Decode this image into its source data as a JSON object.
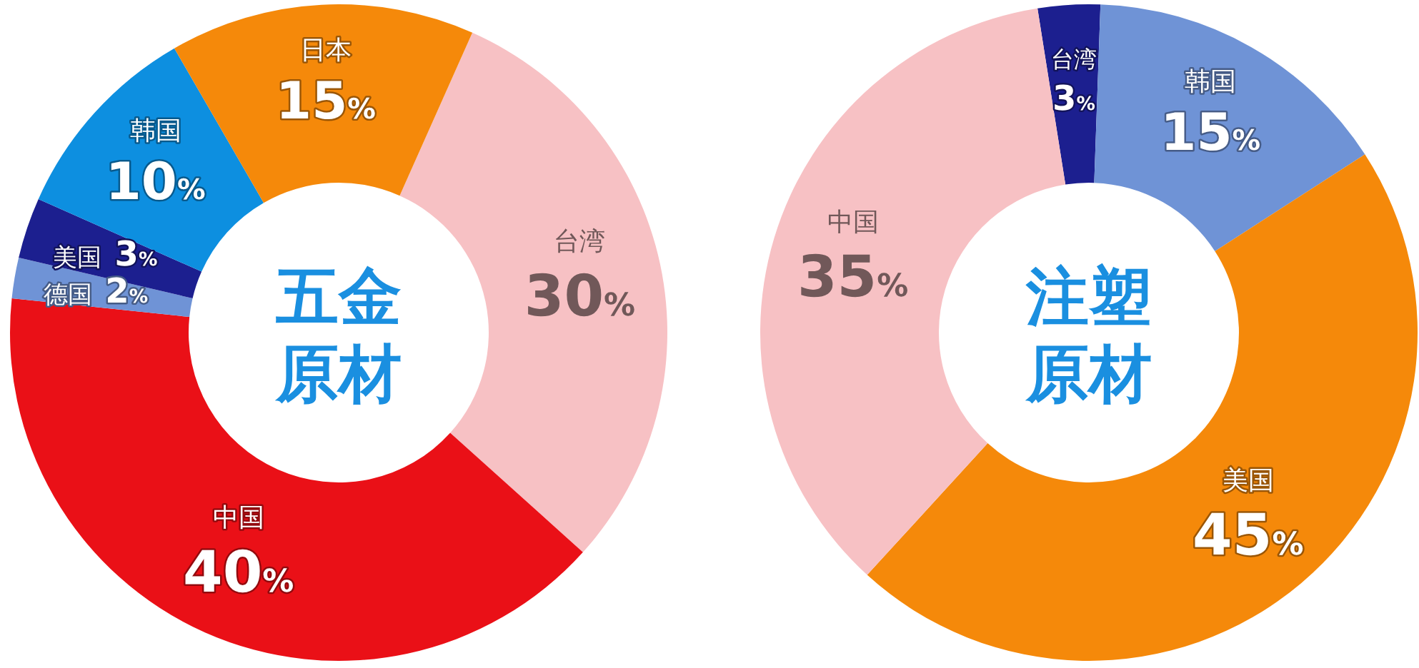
{
  "chart_data": [
    {
      "type": "donut",
      "title": "五金原材",
      "categories": [
        "台湾",
        "中国",
        "德国",
        "美国",
        "韩国",
        "日本"
      ],
      "values": [
        30,
        40,
        2,
        3,
        10,
        15
      ],
      "colors": [
        "#f7c1c4",
        "#ea1017",
        "#6f93d6",
        "#1c1f8f",
        "#0d8fe0",
        "#f5890a"
      ],
      "value_labels": [
        "30%",
        "40%",
        "2%",
        "3%",
        "10%",
        "15%"
      ]
    },
    {
      "type": "donut",
      "title": "注塑原材",
      "categories": [
        "台湾",
        "韩国",
        "美国",
        "中国"
      ],
      "values": [
        3,
        15,
        45,
        35
      ],
      "colors": [
        "#1c1f8f",
        "#6f93d6",
        "#f5890a",
        "#f7c1c4"
      ],
      "value_labels": [
        "3%",
        "15%",
        "45%",
        "35%"
      ]
    }
  ]
}
